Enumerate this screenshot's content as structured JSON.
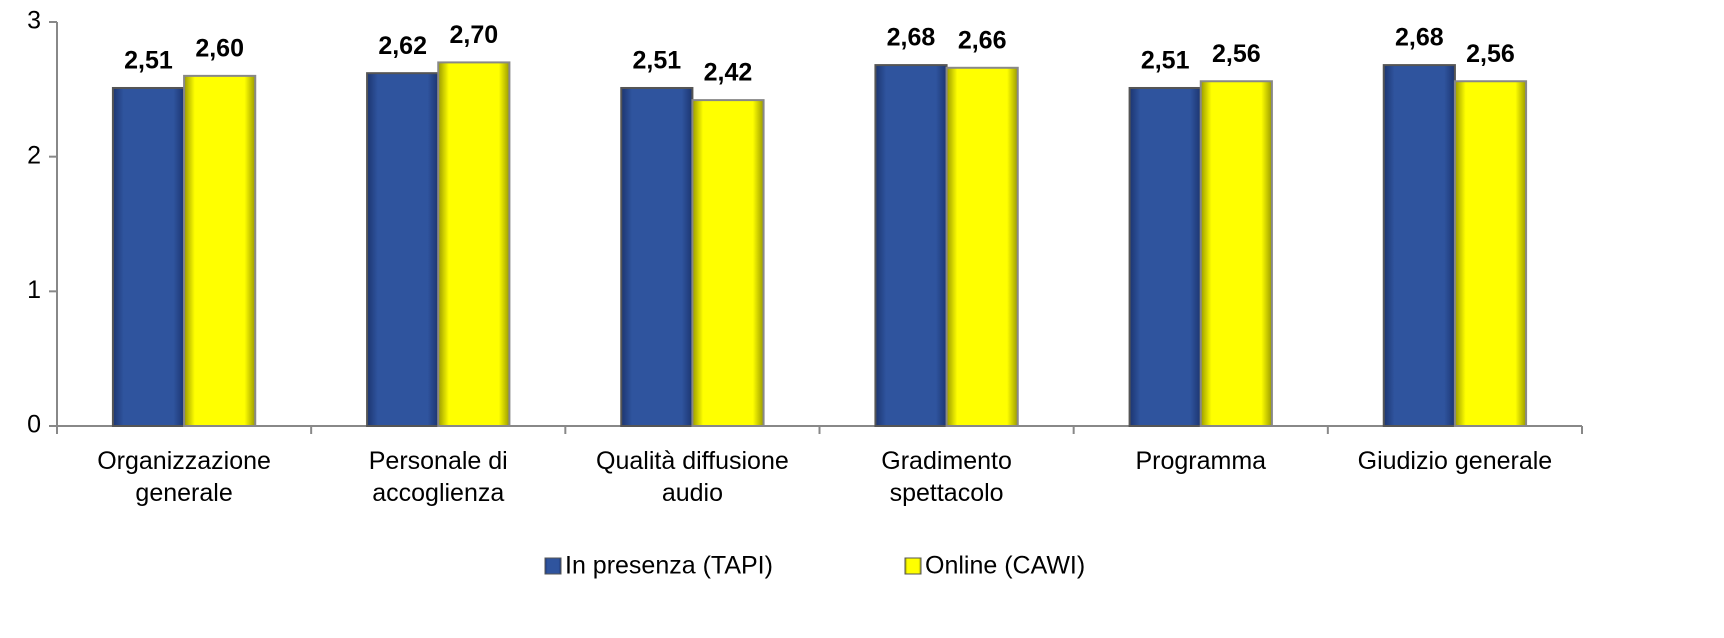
{
  "chart_data": {
    "type": "bar",
    "categories": [
      [
        "Organizzazione",
        "generale"
      ],
      [
        "Personale di",
        "accoglienza"
      ],
      [
        "Qualità diffusione",
        "audio"
      ],
      [
        "Gradimento",
        "spettacolo"
      ],
      [
        "Programma"
      ],
      [
        "Giudizio generale"
      ]
    ],
    "series": [
      {
        "name": "In presenza (TAPI)",
        "color": "#2f549e",
        "values": [
          2.51,
          2.62,
          2.51,
          2.68,
          2.51,
          2.68
        ],
        "value_labels": [
          "2,51",
          "2,62",
          "2,51",
          "2,68",
          "2,51",
          "2,68"
        ]
      },
      {
        "name": "Online (CAWI)",
        "color": "#ffff00",
        "values": [
          2.6,
          2.7,
          2.42,
          2.66,
          2.56,
          2.56
        ],
        "value_labels": [
          "2,60",
          "2,70",
          "2,42",
          "2,66",
          "2,56",
          "2,56"
        ]
      }
    ],
    "ylim": [
      0,
      3
    ],
    "yticks": [
      0,
      1,
      2,
      3
    ]
  }
}
